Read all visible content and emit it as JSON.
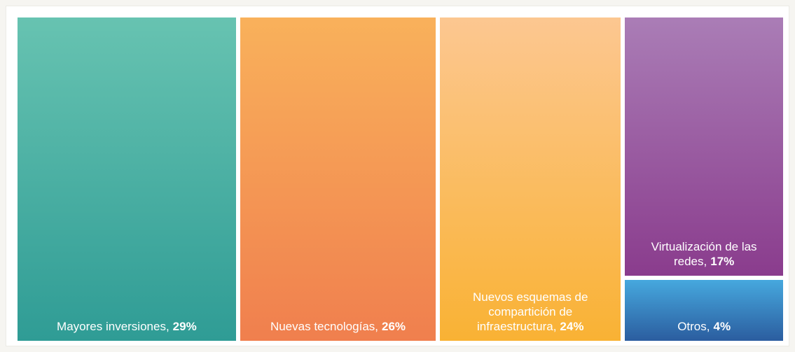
{
  "chart_data": {
    "type": "treemap",
    "categories": [
      "Mayores inversiones,",
      "Nuevas tecnologías,",
      "Nuevos esquemas de compartición de infraestructura,",
      "Virtualización de las redes,",
      "Otros,"
    ],
    "values": [
      29,
      26,
      24,
      17,
      4
    ],
    "value_labels": [
      "29%",
      "26%",
      "24%",
      "17%",
      "4%"
    ],
    "colors": [
      [
        "#67c3b1",
        "#2f9c95"
      ],
      [
        "#f9b15b",
        "#f07f4e"
      ],
      [
        "#fcc791",
        "#f9b234"
      ],
      [
        "#aa7db6",
        "#8a3c8d"
      ],
      [
        "#46a8de",
        "#2b5d9f"
      ]
    ]
  }
}
